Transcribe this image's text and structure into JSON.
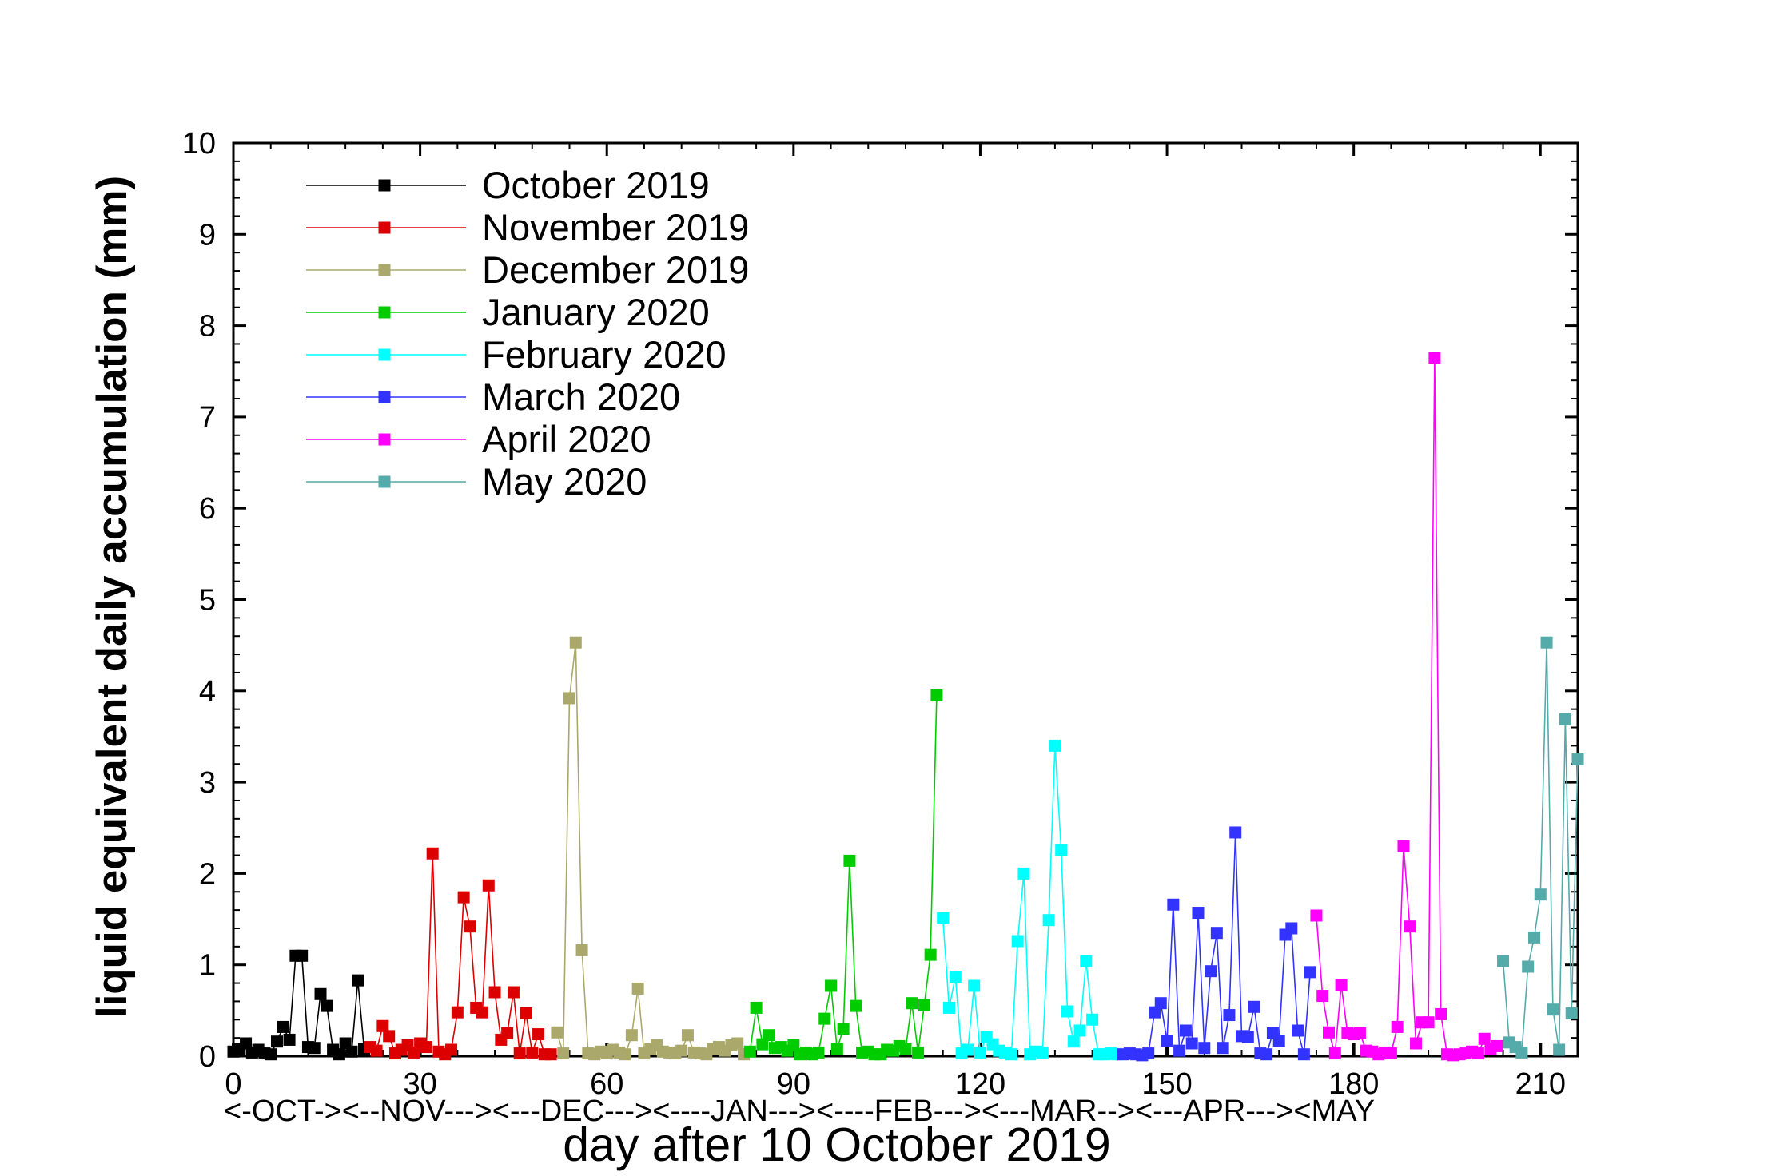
{
  "chart_data": {
    "type": "line",
    "title": "",
    "xlabel": "day after 10 October 2019",
    "ylabel": "liquid equivalent daily accumulation (mm)",
    "xlim": [
      0,
      216
    ],
    "ylim": [
      0,
      10
    ],
    "x_ticks": [
      0,
      30,
      60,
      90,
      120,
      150,
      180,
      210
    ],
    "y_ticks": [
      0,
      1,
      2,
      3,
      4,
      5,
      6,
      7,
      8,
      9,
      10
    ],
    "month_band": "<-OCT-><--NOV---><---DEC---><----JAN---><----FEB---><---MAR--><---APR---><MAY",
    "grid": false,
    "legend_position": "top-left",
    "marker": "square",
    "series": [
      {
        "name": "October 2019",
        "color": "#000000",
        "x": [
          0,
          1,
          2,
          3,
          4,
          5,
          6,
          7,
          8,
          9,
          10,
          11,
          12,
          13,
          14,
          15,
          16,
          17,
          18,
          19,
          20,
          21
        ],
        "y": [
          0.05,
          0.08,
          0.14,
          0.04,
          0.07,
          0.03,
          0.02,
          0.16,
          0.32,
          0.18,
          1.1,
          1.1,
          0.1,
          0.09,
          0.68,
          0.55,
          0.07,
          0.02,
          0.14,
          0.05,
          0.83,
          0.08
        ]
      },
      {
        "name": "November 2019",
        "color": "#dd0000",
        "x": [
          22,
          23,
          24,
          25,
          26,
          27,
          28,
          29,
          30,
          31,
          32,
          33,
          34,
          35,
          36,
          37,
          38,
          39,
          40,
          41,
          42,
          43,
          44,
          45,
          46,
          47,
          48,
          49,
          50,
          51
        ],
        "y": [
          0.1,
          0.06,
          0.33,
          0.22,
          0.03,
          0.07,
          0.12,
          0.04,
          0.14,
          0.1,
          2.22,
          0.05,
          0.02,
          0.07,
          0.48,
          1.74,
          1.42,
          0.53,
          0.48,
          1.87,
          0.7,
          0.18,
          0.25,
          0.7,
          0.03,
          0.47,
          0.04,
          0.24,
          0.02,
          0.02
        ]
      },
      {
        "name": "December 2019",
        "color": "#aaa86a",
        "x": [
          52,
          53,
          54,
          55,
          56,
          57,
          58,
          59,
          60,
          61,
          62,
          63,
          64,
          65,
          66,
          67,
          68,
          69,
          70,
          71,
          72,
          73,
          74,
          75,
          76,
          77,
          78,
          79,
          80,
          81,
          82
        ],
        "y": [
          0.26,
          0.03,
          3.92,
          4.53,
          1.16,
          0.03,
          0.02,
          0.05,
          0.03,
          0.07,
          0.04,
          0.02,
          0.23,
          0.74,
          0.03,
          0.08,
          0.12,
          0.05,
          0.04,
          0.03,
          0.06,
          0.23,
          0.04,
          0.03,
          0.02,
          0.08,
          0.1,
          0.06,
          0.12,
          0.14,
          0.02
        ]
      },
      {
        "name": "January 2020",
        "color": "#00cc00",
        "x": [
          83,
          84,
          85,
          86,
          87,
          88,
          89,
          90,
          91,
          92,
          93,
          94,
          95,
          96,
          97,
          98,
          99,
          100,
          101,
          102,
          103,
          104,
          105,
          106,
          107,
          108,
          109,
          110,
          111,
          112,
          113
        ],
        "y": [
          0.05,
          0.53,
          0.13,
          0.23,
          0.09,
          0.1,
          0.06,
          0.12,
          0.02,
          0.04,
          0.02,
          0.04,
          0.41,
          0.77,
          0.08,
          0.3,
          2.14,
          0.55,
          0.04,
          0.05,
          0.02,
          0.02,
          0.07,
          0.06,
          0.11,
          0.08,
          0.58,
          0.04,
          0.56,
          1.11,
          3.95
        ]
      },
      {
        "name": "February 2020",
        "color": "#00ffff",
        "x": [
          114,
          115,
          116,
          117,
          118,
          119,
          120,
          121,
          122,
          123,
          124,
          125,
          126,
          127,
          128,
          129,
          130,
          131,
          132,
          133,
          134,
          135,
          136,
          137,
          138,
          139,
          140,
          141,
          142
        ],
        "y": [
          1.51,
          0.53,
          0.87,
          0.03,
          0.07,
          0.77,
          0.04,
          0.21,
          0.13,
          0.06,
          0.04,
          0.02,
          1.26,
          2.0,
          0.02,
          0.05,
          0.04,
          1.49,
          3.4,
          2.26,
          0.49,
          0.16,
          0.28,
          1.04,
          0.4,
          0.02,
          0.02,
          0.03,
          0.02
        ]
      },
      {
        "name": "March 2020",
        "color": "#3333ff",
        "x": [
          143,
          144,
          145,
          146,
          147,
          148,
          149,
          150,
          151,
          152,
          153,
          154,
          155,
          156,
          157,
          158,
          159,
          160,
          161,
          162,
          163,
          164,
          165,
          166,
          167,
          168,
          169,
          170,
          171,
          172,
          173
        ],
        "y": [
          0.02,
          0.03,
          0.02,
          0.01,
          0.03,
          0.48,
          0.58,
          0.17,
          1.66,
          0.06,
          0.28,
          0.14,
          1.57,
          0.09,
          0.93,
          1.35,
          0.09,
          0.45,
          2.45,
          0.22,
          0.21,
          0.54,
          0.03,
          0.02,
          0.25,
          0.17,
          1.33,
          1.4,
          0.28,
          0.02,
          0.92
        ]
      },
      {
        "name": "April 2020",
        "color": "#ff00ff",
        "x": [
          174,
          175,
          176,
          177,
          178,
          179,
          180,
          181,
          182,
          183,
          184,
          185,
          186,
          187,
          188,
          189,
          190,
          191,
          192,
          193,
          194,
          195,
          196,
          197,
          198,
          199,
          200,
          201,
          202,
          203
        ],
        "y": [
          1.54,
          0.66,
          0.26,
          0.03,
          0.78,
          0.25,
          0.24,
          0.25,
          0.06,
          0.05,
          0.02,
          0.04,
          0.03,
          0.32,
          2.3,
          1.42,
          0.14,
          0.37,
          0.37,
          7.65,
          0.46,
          0.02,
          0.01,
          0.02,
          0.03,
          0.05,
          0.03,
          0.19,
          0.08,
          0.11
        ]
      },
      {
        "name": "May 2020",
        "color": "#55aaaa",
        "x": [
          204,
          205,
          206,
          207,
          208,
          209,
          210,
          211,
          212,
          213,
          214,
          215,
          216
        ],
        "y": [
          1.04,
          0.15,
          0.1,
          0.04,
          0.98,
          1.3,
          1.77,
          4.53,
          0.51,
          0.07,
          3.69,
          0.47,
          3.25
        ]
      }
    ]
  }
}
